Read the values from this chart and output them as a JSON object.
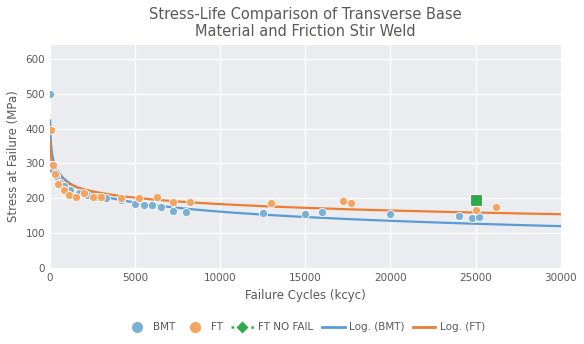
{
  "title": "Stress-Life Comparison of Transverse Base\nMaterial and Friction Stir Weld",
  "xlabel": "Failure Cycles (kcyc)",
  "ylabel": "Stress at Failure (MPa)",
  "xlim": [
    0,
    30000
  ],
  "ylim": [
    0,
    640
  ],
  "xticks": [
    0,
    5000,
    10000,
    15000,
    20000,
    25000,
    30000
  ],
  "yticks": [
    0,
    100,
    200,
    300,
    400,
    500,
    600
  ],
  "bmt_color": "#7bafd4",
  "ft_color": "#f4a460",
  "ft_nofail_color": "#2eaa4a",
  "log_bmt_color": "#5b9bd5",
  "log_ft_color": "#ed7d31",
  "bmt_scatter": [
    [
      30,
      500
    ],
    [
      100,
      295
    ],
    [
      200,
      280
    ],
    [
      350,
      265
    ],
    [
      600,
      245
    ],
    [
      800,
      235
    ],
    [
      1200,
      225
    ],
    [
      1700,
      215
    ],
    [
      2200,
      210
    ],
    [
      2700,
      205
    ],
    [
      3300,
      200
    ],
    [
      4200,
      195
    ],
    [
      5000,
      185
    ],
    [
      5500,
      180
    ],
    [
      6000,
      180
    ],
    [
      6500,
      175
    ],
    [
      7200,
      165
    ],
    [
      8000,
      160
    ],
    [
      12500,
      158
    ],
    [
      15000,
      155
    ],
    [
      16000,
      160
    ],
    [
      20000,
      155
    ],
    [
      24000,
      150
    ],
    [
      24800,
      145
    ],
    [
      25200,
      148
    ]
  ],
  "ft_scatter": [
    [
      50,
      395
    ],
    [
      150,
      295
    ],
    [
      300,
      270
    ],
    [
      500,
      240
    ],
    [
      800,
      225
    ],
    [
      1100,
      210
    ],
    [
      1500,
      205
    ],
    [
      2000,
      215
    ],
    [
      2500,
      205
    ],
    [
      3000,
      205
    ],
    [
      4200,
      200
    ],
    [
      5200,
      200
    ],
    [
      6300,
      205
    ],
    [
      7200,
      190
    ],
    [
      8200,
      190
    ],
    [
      13000,
      188
    ],
    [
      17200,
      193
    ],
    [
      17700,
      188
    ],
    [
      25000,
      168
    ],
    [
      26200,
      175
    ]
  ],
  "ft_nofail_scatter": [
    [
      25000,
      195
    ]
  ],
  "background_color": "#ffffff",
  "plot_bg_color": "#eaecf0",
  "grid_color": "#ffffff",
  "title_color": "#595959",
  "axis_label_color": "#595959",
  "tick_color": "#595959"
}
